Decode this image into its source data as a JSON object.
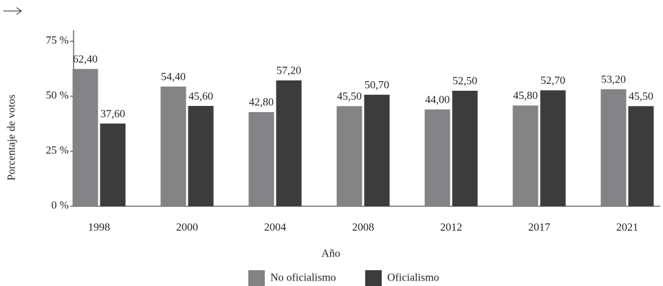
{
  "chart_data": {
    "type": "bar",
    "y_label": "Porcentaje de votos",
    "x_label": "Año",
    "categories": [
      "1998",
      "2000",
      "2004",
      "2008",
      "2012",
      "2017",
      "2021"
    ],
    "series": [
      {
        "name": "No oficialismo",
        "color": "#838386",
        "values": [
          62.4,
          54.4,
          42.8,
          45.5,
          44.0,
          45.8,
          53.2
        ],
        "value_labels": [
          "62,40",
          "54,40",
          "42,80",
          "45,50",
          "44,00",
          "45,80",
          "53,20"
        ]
      },
      {
        "name": "Oficialismo",
        "color": "#3c3c3c",
        "values": [
          37.6,
          45.6,
          57.2,
          50.7,
          52.5,
          52.7,
          45.5
        ],
        "value_labels": [
          "37,60",
          "45,60",
          "57,20",
          "50,70",
          "52,50",
          "52,70",
          "45,50"
        ]
      }
    ],
    "ylim": [
      0,
      80
    ],
    "yticks": [
      {
        "value": 0,
        "label": "0 %"
      },
      {
        "value": 25,
        "label": "25 %"
      },
      {
        "value": 50,
        "label": "50 %"
      },
      {
        "value": 75,
        "label": "75 %"
      }
    ],
    "legend": "bottom"
  }
}
